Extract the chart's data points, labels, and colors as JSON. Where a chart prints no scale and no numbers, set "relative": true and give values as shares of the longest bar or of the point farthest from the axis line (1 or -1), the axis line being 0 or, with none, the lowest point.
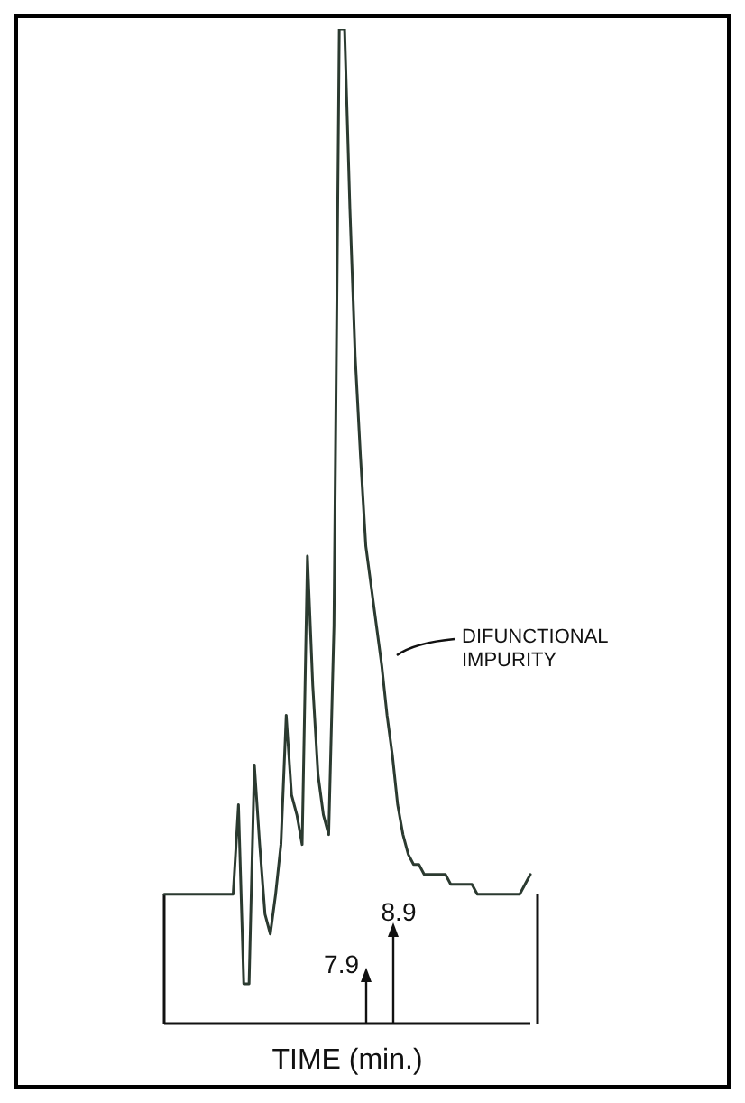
{
  "chart_data": {
    "type": "line",
    "relative": true,
    "xlabel": "TIME (min.)",
    "color": "#2b3a30",
    "categories": [
      null,
      null,
      null,
      null,
      null,
      null,
      null,
      null,
      null,
      null,
      null,
      null,
      null,
      null,
      null,
      null,
      null,
      null,
      null,
      null,
      null,
      null,
      null,
      null,
      null,
      null,
      null,
      null,
      null,
      null,
      null,
      null,
      null,
      null,
      null,
      null,
      null,
      null,
      null,
      null,
      null,
      null,
      null,
      null,
      null,
      null,
      null,
      null,
      null,
      null,
      null,
      null,
      null,
      null,
      null,
      null,
      null,
      null,
      null,
      null,
      null,
      null,
      null,
      null,
      null,
      null,
      null,
      null,
      null,
      null
    ],
    "values": [
      0.13,
      0.13,
      0.13,
      0.13,
      0.13,
      0.13,
      0.13,
      0.13,
      0.13,
      0.13,
      0.13,
      0.13,
      0.13,
      0.13,
      0.22,
      0.04,
      0.04,
      0.26,
      0.18,
      0.11,
      0.09,
      0.13,
      0.18,
      0.31,
      0.23,
      0.21,
      0.18,
      0.47,
      0.34,
      0.25,
      0.21,
      0.19,
      0.4,
      1,
      1,
      0.82,
      0.67,
      0.57,
      0.48,
      0.44,
      0.4,
      0.36,
      0.31,
      0.27,
      0.22,
      0.19,
      0.17,
      0.16,
      0.16,
      0.15,
      0.15,
      0.15,
      0.15,
      0.15,
      0.14,
      0.14,
      0.14,
      0.14,
      0.14,
      0.13,
      0.13,
      0.13,
      0.13,
      0.13,
      0.13,
      0.13,
      0.13,
      0.13,
      0.14,
      0.15
    ],
    "annotations": [
      "DIFUNCTIONAL IMPURITY",
      "7.9",
      "8.9"
    ]
  }
}
